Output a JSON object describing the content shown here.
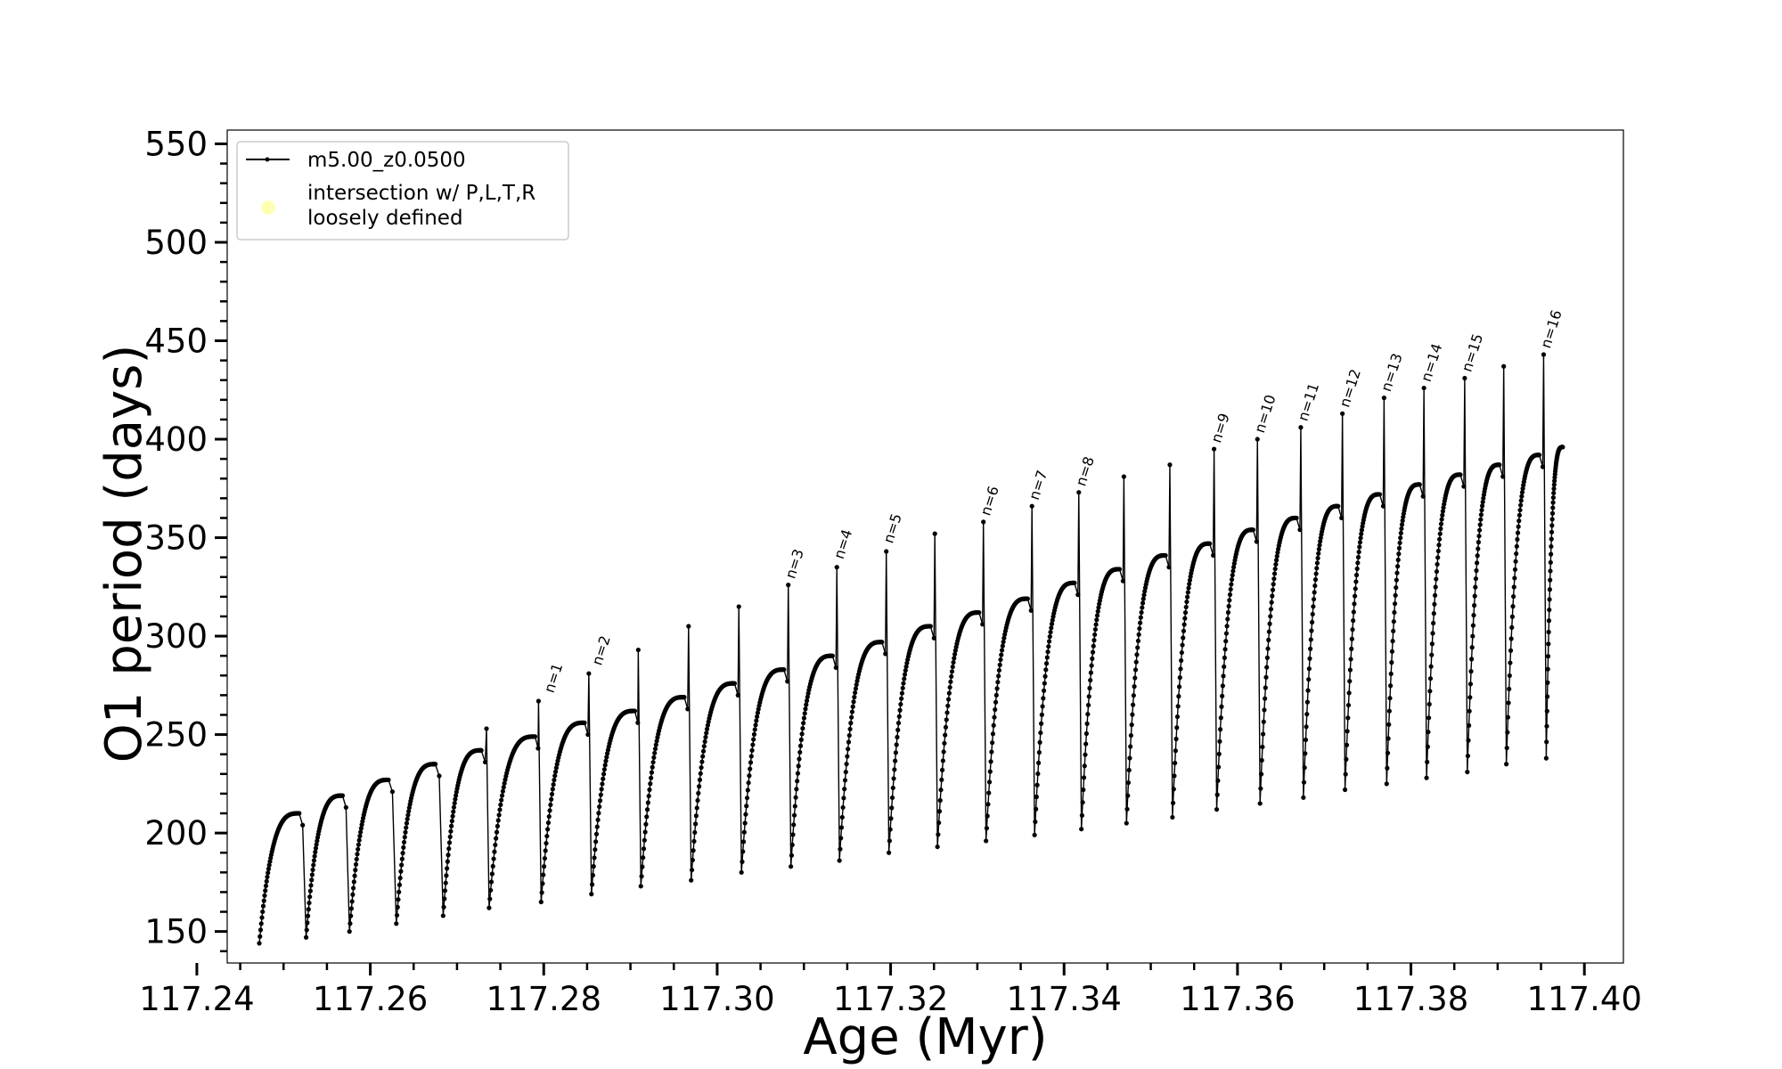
{
  "chart_data": {
    "type": "line",
    "title": "",
    "xlabel": "Age (Myr)",
    "ylabel": "O1 period (days)",
    "xlim": [
      117.2435,
      117.4045
    ],
    "ylim": [
      134,
      557
    ],
    "xticks": [
      117.24,
      117.26,
      117.28,
      117.3,
      117.32,
      117.34,
      117.36,
      117.38,
      117.4
    ],
    "xtick_labels": [
      "117.24",
      "117.26",
      "117.28",
      "117.30",
      "117.32",
      "117.34",
      "117.36",
      "117.38",
      "117.40"
    ],
    "yticks": [
      150,
      200,
      250,
      300,
      350,
      400,
      450,
      500,
      550
    ],
    "ytick_labels": [
      "150",
      "200",
      "250",
      "300",
      "350",
      "400",
      "450",
      "500",
      "550"
    ],
    "x_minor_step": 0.005,
    "y_minor_step": 10,
    "grid": false,
    "legend": {
      "placement": "upper-left",
      "entries": [
        {
          "label": "m5.00_z0.0500",
          "marker": "line-dot",
          "color": "#000000"
        },
        {
          "label_lines": [
            "intersection w/ P,L,T,R",
            "loosely defined"
          ],
          "marker": "circle",
          "color": "#ffffb3"
        }
      ]
    },
    "series": [
      {
        "name": "m5.00_z0.0500",
        "color": "#000000",
        "cycles": [
          {
            "start": 117.2472,
            "min": 144,
            "end": 117.2518,
            "max": 210,
            "spike": 0
          },
          {
            "start": 117.2526,
            "min": 147,
            "end": 117.2568,
            "max": 219,
            "spike": 0
          },
          {
            "start": 117.2576,
            "min": 150,
            "end": 117.2621,
            "max": 227,
            "spike": 0
          },
          {
            "start": 117.263,
            "min": 154,
            "end": 117.2675,
            "max": 235,
            "spike": 0
          },
          {
            "start": 117.2684,
            "min": 158,
            "end": 117.2728,
            "max": 242,
            "spike": 0
          },
          {
            "start": 117.2737,
            "min": 162,
            "end": 117.279,
            "max": 249,
            "spike": 253
          },
          {
            "start": 117.2797,
            "min": 165,
            "end": 117.2847,
            "max": 256,
            "spike": 267
          },
          {
            "start": 117.2855,
            "min": 169,
            "end": 117.2905,
            "max": 262,
            "spike": 281
          },
          {
            "start": 117.2912,
            "min": 173,
            "end": 117.2962,
            "max": 269,
            "spike": 293
          },
          {
            "start": 117.297,
            "min": 176,
            "end": 117.302,
            "max": 276,
            "spike": 305
          },
          {
            "start": 117.3028,
            "min": 180,
            "end": 117.3077,
            "max": 283,
            "spike": 315
          },
          {
            "start": 117.3085,
            "min": 183,
            "end": 117.3133,
            "max": 290,
            "spike": 326
          },
          {
            "start": 117.3141,
            "min": 186,
            "end": 117.319,
            "max": 297,
            "spike": 335
          },
          {
            "start": 117.3198,
            "min": 190,
            "end": 117.3246,
            "max": 305,
            "spike": 343
          },
          {
            "start": 117.3254,
            "min": 193,
            "end": 117.3302,
            "max": 312,
            "spike": 352
          },
          {
            "start": 117.331,
            "min": 196,
            "end": 117.3358,
            "max": 319,
            "spike": 358
          },
          {
            "start": 117.3366,
            "min": 199,
            "end": 117.3412,
            "max": 327,
            "spike": 366
          },
          {
            "start": 117.342,
            "min": 202,
            "end": 117.3464,
            "max": 334,
            "spike": 373
          },
          {
            "start": 117.3472,
            "min": 205,
            "end": 117.3517,
            "max": 341,
            "spike": 381
          },
          {
            "start": 117.3525,
            "min": 208,
            "end": 117.3568,
            "max": 347,
            "spike": 387
          },
          {
            "start": 117.3576,
            "min": 212,
            "end": 117.3618,
            "max": 354,
            "spike": 395
          },
          {
            "start": 117.3626,
            "min": 215,
            "end": 117.3668,
            "max": 360,
            "spike": 400
          },
          {
            "start": 117.3676,
            "min": 218,
            "end": 117.3716,
            "max": 366,
            "spike": 406
          },
          {
            "start": 117.3724,
            "min": 222,
            "end": 117.3764,
            "max": 372,
            "spike": 413
          },
          {
            "start": 117.3772,
            "min": 225,
            "end": 117.381,
            "max": 377,
            "spike": 421
          },
          {
            "start": 117.3818,
            "min": 228,
            "end": 117.3857,
            "max": 382,
            "spike": 426
          },
          {
            "start": 117.3865,
            "min": 231,
            "end": 117.3902,
            "max": 387,
            "spike": 431
          },
          {
            "start": 117.391,
            "min": 235,
            "end": 117.3948,
            "max": 392,
            "spike": 437
          },
          {
            "start": 117.3956,
            "min": 238,
            "end": 117.3975,
            "max": 396,
            "spike": 443
          }
        ]
      }
    ],
    "annotations": [
      {
        "text": "n=1",
        "x": 117.2807,
        "y": 268
      },
      {
        "text": "n=2",
        "x": 117.2862,
        "y": 282
      },
      {
        "text": "n=3",
        "x": 117.3085,
        "y": 326
      },
      {
        "text": "n=4",
        "x": 117.3141,
        "y": 336
      },
      {
        "text": "n=5",
        "x": 117.3198,
        "y": 344
      },
      {
        "text": "n=6",
        "x": 117.331,
        "y": 358
      },
      {
        "text": "n=7",
        "x": 117.3366,
        "y": 366
      },
      {
        "text": "n=8",
        "x": 117.342,
        "y": 373
      },
      {
        "text": "n=9",
        "x": 117.3576,
        "y": 395
      },
      {
        "text": "n=10",
        "x": 117.3626,
        "y": 400
      },
      {
        "text": "n=11",
        "x": 117.3676,
        "y": 406
      },
      {
        "text": "n=12",
        "x": 117.3724,
        "y": 413
      },
      {
        "text": "n=13",
        "x": 117.3772,
        "y": 421
      },
      {
        "text": "n=14",
        "x": 117.3818,
        "y": 426
      },
      {
        "text": "n=15",
        "x": 117.3865,
        "y": 431
      },
      {
        "text": "n=16",
        "x": 117.3956,
        "y": 443
      }
    ]
  }
}
